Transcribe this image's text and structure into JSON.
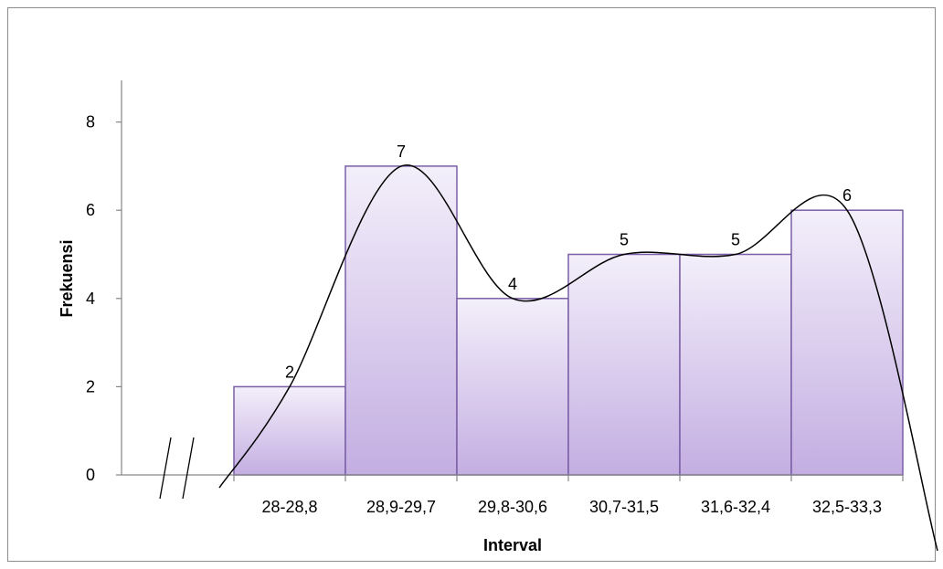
{
  "chart_data": {
    "type": "bar",
    "categories": [
      "28-28,8",
      "28,9-29,7",
      "29,8-30,6",
      "30,7-31,5",
      "31,6-32,4",
      "32,5-33,3"
    ],
    "values": [
      2,
      7,
      4,
      5,
      5,
      6
    ],
    "data_labels": [
      "2",
      "7",
      "4",
      "5",
      "5",
      "6"
    ],
    "xlabel": "Interval",
    "ylabel": "Frekuensi",
    "ylim": [
      0,
      9
    ],
    "yticks": [
      "0",
      "2",
      "4",
      "6",
      "8"
    ],
    "ytick_values": [
      0,
      2,
      4,
      6,
      8
    ],
    "grid": false,
    "legend": "none",
    "overlay": "smooth frequency curve through bar tops",
    "axis_break": "double slash on x-axis",
    "colors": {
      "bar_top": "#f3effa",
      "bar_bottom": "#c4aee2",
      "bar_border": "#7b5ea6",
      "curve": "#000000",
      "axis": "#868686"
    }
  }
}
